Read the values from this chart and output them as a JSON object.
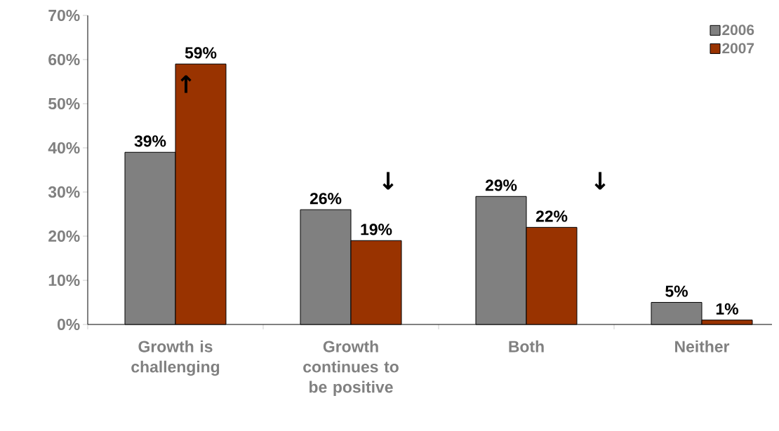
{
  "chart_data": {
    "type": "bar",
    "categories": [
      "Growth is challenging",
      "Growth continues to be positive",
      "Both",
      "Neither"
    ],
    "series": [
      {
        "name": "2006",
        "color": "#808080",
        "values": [
          39,
          26,
          29,
          5
        ],
        "value_labels": [
          "39%",
          "26%",
          "29%",
          "5%"
        ]
      },
      {
        "name": "2007",
        "color": "#993300",
        "values": [
          59,
          19,
          22,
          1
        ],
        "value_labels": [
          "59%",
          "19%",
          "22%",
          "1%"
        ]
      }
    ],
    "ylim": [
      0,
      70
    ],
    "yticks": [
      {
        "value": 0,
        "label": "0%"
      },
      {
        "value": 10,
        "label": "10%"
      },
      {
        "value": 20,
        "label": "20%"
      },
      {
        "value": 30,
        "label": "30%"
      },
      {
        "value": 40,
        "label": "40%"
      },
      {
        "value": 50,
        "label": "50%"
      },
      {
        "value": 60,
        "label": "60%"
      },
      {
        "value": 70,
        "label": "70%"
      }
    ],
    "annotations": [
      "↑",
      "↓",
      "↓"
    ],
    "grid": false,
    "legend": "top right"
  }
}
